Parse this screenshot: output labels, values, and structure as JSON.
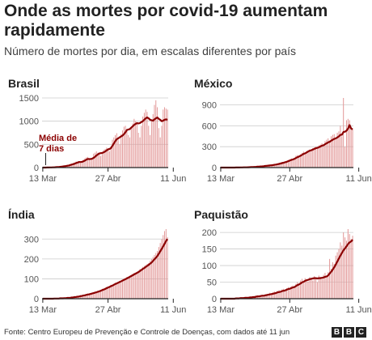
{
  "title": "Onde as mortes por covid-19 aumentam rapidamente",
  "subtitle": "Número de mortes por dia, em escalas diferentes por país",
  "source": "Fonte: Centro Europeu de Prevenção e Controle de Doenças, com dados até 11 jun",
  "logo": [
    "B",
    "B",
    "C"
  ],
  "colors": {
    "bars": "#e39a9a",
    "line": "#8b0000",
    "axis": "#222222",
    "grid": "#cccccc",
    "text": "#222222"
  },
  "chart_data": [
    {
      "type": "bar",
      "title": "Brasil",
      "xticks": [
        "13 Mar",
        "27 Abr",
        "11 Jun"
      ],
      "yticks": [
        0,
        500,
        1000,
        1500
      ],
      "ylim": [
        0,
        1500
      ],
      "annotation": [
        "Média de",
        "7 dias"
      ],
      "values": [
        0,
        0,
        0,
        1,
        2,
        3,
        6,
        7,
        9,
        11,
        15,
        19,
        24,
        28,
        34,
        40,
        38,
        48,
        60,
        75,
        87,
        100,
        110,
        130,
        120,
        140,
        100,
        115,
        170,
        200,
        220,
        230,
        180,
        150,
        200,
        300,
        320,
        350,
        320,
        300,
        250,
        310,
        380,
        400,
        430,
        420,
        350,
        450,
        600,
        650,
        700,
        740,
        600,
        500,
        720,
        800,
        880,
        900,
        820,
        700,
        650,
        850,
        950,
        1050,
        1000,
        950,
        750,
        650,
        900,
        1100,
        1180,
        1250,
        1200,
        900,
        700,
        1000,
        1150,
        1350,
        1450,
        1300,
        850,
        650,
        900,
        1250,
        1300,
        1270,
        1250
      ],
      "avg": [
        0,
        0,
        0,
        1,
        2,
        3,
        4,
        5,
        6,
        8,
        10,
        13,
        16,
        20,
        24,
        29,
        33,
        40,
        46,
        55,
        64,
        73,
        83,
        97,
        108,
        120,
        118,
        124,
        134,
        150,
        169,
        186,
        184,
        183,
        190,
        210,
        230,
        260,
        285,
        303,
        310,
        315,
        330,
        345,
        370,
        390,
        400,
        420,
        470,
        520,
        570,
        610,
        630,
        650,
        670,
        690,
        720,
        760,
        810,
        820,
        830,
        860,
        890,
        920,
        940,
        960,
        950,
        960,
        980,
        1000,
        1030,
        1060,
        1080,
        1060,
        1030,
        1020,
        1010,
        1040,
        1060,
        1080,
        1050,
        1030,
        1000,
        1010,
        1030,
        1040,
        1030
      ],
      "tick_index": [
        0,
        45,
        90
      ]
    },
    {
      "type": "bar",
      "title": "México",
      "xticks": [
        "13 Mar",
        "27 Abr",
        "11 Jun"
      ],
      "yticks": [
        0,
        300,
        600,
        900
      ],
      "ylim": [
        0,
        1000
      ],
      "values": [
        0,
        0,
        0,
        0,
        0,
        0,
        0,
        0,
        1,
        0,
        1,
        1,
        2,
        2,
        3,
        4,
        4,
        5,
        6,
        8,
        10,
        8,
        12,
        15,
        18,
        16,
        20,
        22,
        26,
        30,
        28,
        34,
        36,
        40,
        38,
        45,
        50,
        60,
        55,
        70,
        80,
        75,
        90,
        95,
        110,
        120,
        130,
        125,
        140,
        170,
        180,
        160,
        190,
        210,
        230,
        200,
        240,
        250,
        260,
        240,
        280,
        290,
        300,
        270,
        320,
        330,
        350,
        300,
        380,
        400,
        420,
        390,
        450,
        470,
        480,
        430,
        500,
        520,
        600,
        450,
        1090,
        300,
        680,
        700,
        680,
        560,
        550
      ],
      "avg": [
        0,
        0,
        0,
        0,
        0,
        0,
        0,
        0,
        0,
        0,
        1,
        1,
        1,
        2,
        2,
        3,
        3,
        4,
        5,
        6,
        7,
        8,
        9,
        11,
        13,
        14,
        16,
        18,
        20,
        23,
        25,
        28,
        30,
        33,
        35,
        39,
        43,
        48,
        52,
        58,
        64,
        70,
        77,
        83,
        92,
        100,
        109,
        116,
        124,
        137,
        149,
        158,
        170,
        183,
        197,
        205,
        217,
        230,
        242,
        248,
        258,
        268,
        278,
        282,
        292,
        302,
        315,
        320,
        335,
        348,
        362,
        370,
        385,
        400,
        412,
        420,
        432,
        448,
        470,
        472,
        510,
        515,
        530,
        560,
        610,
        560,
        550
      ],
      "tick_index": [
        0,
        45,
        90
      ]
    },
    {
      "type": "bar",
      "title": "Índia",
      "xticks": [
        "13 Mar",
        "27 Abr",
        "11 Jun"
      ],
      "yticks": [
        0,
        100,
        200,
        300
      ],
      "ylim": [
        0,
        350
      ],
      "values": [
        0,
        0,
        0,
        0,
        0,
        1,
        0,
        1,
        1,
        1,
        2,
        3,
        2,
        3,
        4,
        5,
        4,
        6,
        7,
        6,
        8,
        10,
        12,
        11,
        14,
        15,
        18,
        17,
        20,
        22,
        24,
        26,
        25,
        28,
        30,
        32,
        35,
        34,
        40,
        42,
        45,
        50,
        48,
        55,
        60,
        62,
        58,
        70,
        68,
        75,
        80,
        78,
        85,
        90,
        88,
        95,
        100,
        105,
        110,
        108,
        115,
        120,
        125,
        130,
        128,
        135,
        140,
        150,
        145,
        160,
        165,
        170,
        175,
        180,
        190,
        200,
        210,
        220,
        230,
        240,
        260,
        280,
        300,
        320,
        340,
        350,
        310
      ],
      "avg": [
        0,
        0,
        0,
        0,
        0,
        0,
        0,
        0,
        1,
        1,
        1,
        1,
        2,
        2,
        2,
        3,
        3,
        4,
        4,
        5,
        6,
        7,
        8,
        9,
        10,
        11,
        13,
        14,
        16,
        17,
        19,
        21,
        22,
        24,
        26,
        28,
        30,
        32,
        35,
        37,
        40,
        43,
        46,
        49,
        53,
        56,
        59,
        63,
        66,
        70,
        74,
        77,
        80,
        84,
        87,
        91,
        95,
        98,
        102,
        106,
        110,
        114,
        118,
        122,
        126,
        130,
        134,
        139,
        144,
        150,
        154,
        160,
        165,
        170,
        176,
        182,
        190,
        198,
        206,
        215,
        226,
        238,
        250,
        263,
        276,
        290,
        300
      ],
      "tick_index": [
        0,
        45,
        90
      ]
    },
    {
      "type": "bar",
      "title": "Paquistão",
      "xticks": [
        "13 Mar",
        "27 Abr",
        "11 Jun"
      ],
      "yticks": [
        0,
        50,
        100,
        150,
        200
      ],
      "ylim": [
        0,
        210
      ],
      "values": [
        0,
        0,
        0,
        0,
        0,
        0,
        1,
        0,
        1,
        1,
        2,
        2,
        3,
        2,
        3,
        4,
        3,
        5,
        4,
        6,
        5,
        7,
        6,
        8,
        10,
        9,
        11,
        12,
        10,
        14,
        13,
        15,
        18,
        16,
        20,
        22,
        19,
        24,
        26,
        22,
        28,
        30,
        25,
        32,
        35,
        30,
        38,
        40,
        36,
        45,
        50,
        42,
        55,
        60,
        48,
        62,
        58,
        52,
        65,
        60,
        55,
        68,
        62,
        50,
        70,
        66,
        60,
        72,
        78,
        64,
        80,
        120,
        90,
        110,
        105,
        130,
        140,
        150,
        170,
        160,
        200,
        185,
        175,
        210,
        195,
        180,
        190
      ],
      "avg": [
        0,
        0,
        0,
        0,
        0,
        0,
        0,
        0,
        0,
        0,
        1,
        1,
        1,
        2,
        2,
        2,
        3,
        3,
        3,
        4,
        4,
        5,
        5,
        6,
        7,
        7,
        8,
        9,
        9,
        10,
        11,
        12,
        13,
        14,
        15,
        16,
        17,
        19,
        20,
        21,
        23,
        24,
        25,
        27,
        29,
        30,
        32,
        34,
        35,
        38,
        41,
        43,
        46,
        49,
        51,
        54,
        56,
        57,
        59,
        60,
        61,
        62,
        62,
        61,
        62,
        62,
        63,
        64,
        66,
        67,
        70,
        76,
        81,
        88,
        95,
        103,
        112,
        121,
        130,
        138,
        146,
        152,
        158,
        165,
        170,
        173,
        178
      ],
      "tick_index": [
        0,
        45,
        90
      ]
    }
  ]
}
